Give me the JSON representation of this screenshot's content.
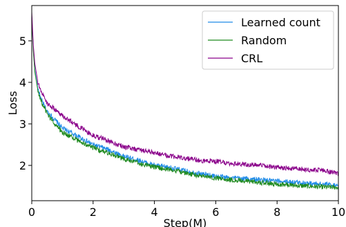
{
  "chart_data": {
    "type": "line",
    "title": "",
    "xlabel": "Step(M)",
    "ylabel": "Loss",
    "xlim": [
      0,
      10
    ],
    "ylim": [
      1.15,
      5.85
    ],
    "xticks": [
      "0",
      "2",
      "4",
      "6",
      "8",
      "10"
    ],
    "yticks": [
      "2",
      "3",
      "4",
      "5"
    ],
    "grid": false,
    "legend_position": "top-right",
    "series": [
      {
        "name": "Learned count",
        "color": "#1f8be8",
        "x": [
          0,
          0.05,
          0.1,
          0.2,
          0.3,
          0.5,
          0.75,
          1,
          1.5,
          2,
          2.5,
          3,
          3.5,
          4,
          4.5,
          5,
          5.5,
          6,
          6.5,
          7,
          7.5,
          8,
          8.5,
          9,
          9.5,
          10
        ],
        "y": [
          5.6,
          4.8,
          4.3,
          3.85,
          3.6,
          3.3,
          3.1,
          2.9,
          2.7,
          2.5,
          2.38,
          2.22,
          2.12,
          2.0,
          1.95,
          1.87,
          1.8,
          1.74,
          1.7,
          1.68,
          1.65,
          1.62,
          1.6,
          1.57,
          1.55,
          1.52
        ]
      },
      {
        "name": "Random",
        "color": "#1f8a1f",
        "x": [
          0,
          0.05,
          0.1,
          0.2,
          0.3,
          0.5,
          0.75,
          1,
          1.5,
          2,
          2.5,
          3,
          3.5,
          4,
          4.5,
          5,
          5.5,
          6,
          6.5,
          7,
          7.5,
          8,
          8.5,
          9,
          9.5,
          10
        ],
        "y": [
          5.6,
          4.75,
          4.25,
          3.8,
          3.55,
          3.25,
          3.0,
          2.8,
          2.6,
          2.42,
          2.3,
          2.15,
          2.05,
          1.96,
          1.9,
          1.82,
          1.75,
          1.7,
          1.65,
          1.62,
          1.58,
          1.55,
          1.52,
          1.5,
          1.48,
          1.47
        ]
      },
      {
        "name": "CRL",
        "color": "#8a008a",
        "x": [
          0,
          0.05,
          0.1,
          0.2,
          0.3,
          0.5,
          0.75,
          1,
          1.5,
          2,
          2.5,
          3,
          3.5,
          4,
          4.5,
          5,
          5.5,
          6,
          6.5,
          7,
          7.5,
          8,
          8.5,
          9,
          9.5,
          10
        ],
        "y": [
          5.7,
          4.9,
          4.45,
          4.0,
          3.8,
          3.5,
          3.35,
          3.2,
          2.95,
          2.72,
          2.6,
          2.45,
          2.38,
          2.3,
          2.22,
          2.18,
          2.12,
          2.1,
          2.05,
          2.02,
          2.0,
          1.95,
          1.93,
          1.9,
          1.88,
          1.8
        ]
      }
    ]
  }
}
